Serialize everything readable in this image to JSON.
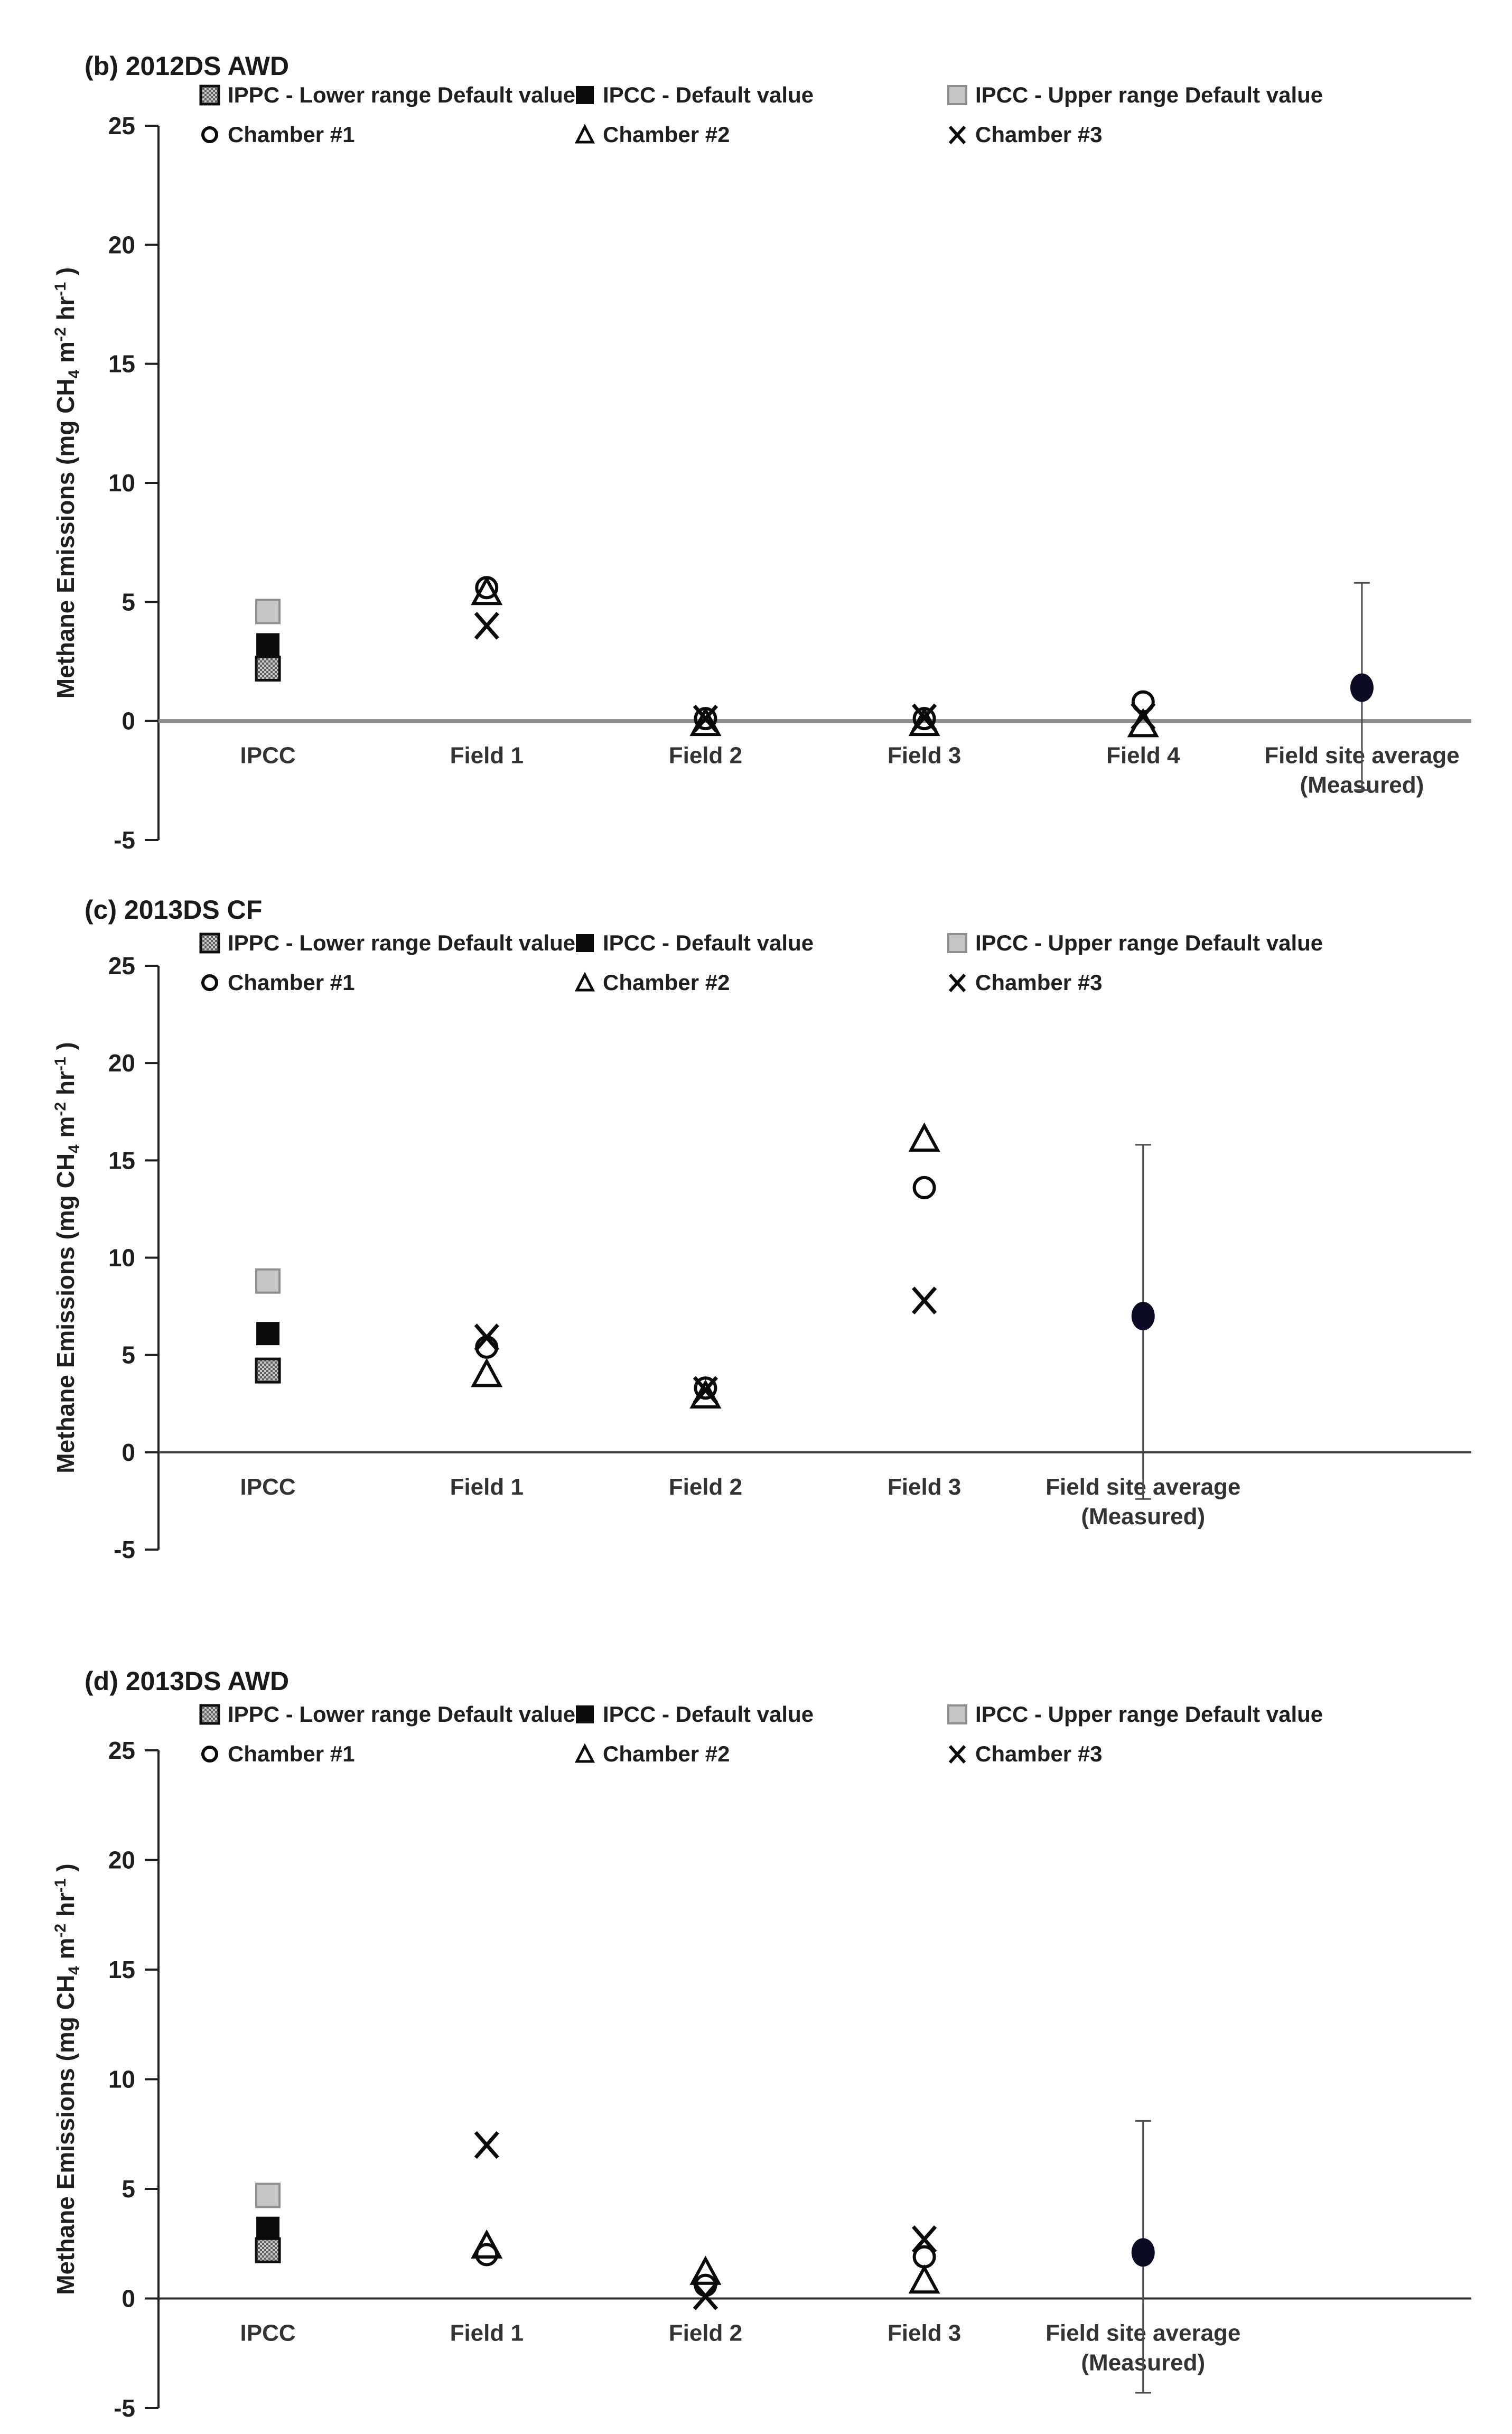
{
  "figure": {
    "background": "#ffffff",
    "text_color": "#1f1f1f"
  },
  "colors": {
    "square_upper_fill": "#c6c6c6",
    "square_upper_stroke": "#8f8f8f",
    "square_default_fill": "#0b0b0b",
    "square_hatched_dot": "#5f5f5f",
    "square_hatched_bg": "#c9c9c9",
    "open_marker_stroke": "#0a0a0a",
    "average_fill": "#0b0b26",
    "error_bar": "#4a4a52",
    "axis": "#1f1f1f",
    "zero_line_b": "#8a8a8a",
    "zero_line_cd": "#3d3d3d"
  },
  "chart_data": [
    {
      "panel": "(b)",
      "title": "(b) 2012DS AWD",
      "type": "scatter",
      "ylabel": "Methane Emissions (mg CH4 m-2 hr-1)",
      "ylabel_rich": [
        {
          "t": "Methane Emissions (mg CH",
          "s": "n"
        },
        {
          "t": "4",
          "s": "sub"
        },
        {
          "t": " m",
          "s": "n"
        },
        {
          "t": "-2",
          "s": "sup"
        },
        {
          "t": " hr",
          "s": "n"
        },
        {
          "t": "-1",
          "s": "sup"
        },
        {
          "t": ")",
          "s": "n"
        }
      ],
      "ylim": [
        -5,
        25
      ],
      "yticks": [
        25,
        20,
        15,
        10,
        5,
        0,
        -5
      ],
      "grid": false,
      "legend_position": "top-inside",
      "slots": 6,
      "categories": [
        [
          "IPCC"
        ],
        [
          "Field 1"
        ],
        [
          "Field 2"
        ],
        [
          "Field 3"
        ],
        [
          "Field 4"
        ],
        [
          "Field site average",
          "(Measured)"
        ]
      ],
      "series": [
        {
          "name": "IPPC - Lower range Default value",
          "marker": "square-hatched",
          "values": [
            2.2,
            null,
            null,
            null,
            null,
            null
          ]
        },
        {
          "name": "IPCC - Default value",
          "marker": "square-black",
          "values": [
            3.2,
            null,
            null,
            null,
            null,
            null
          ]
        },
        {
          "name": "IPCC - Upper range Default value",
          "marker": "square-gray",
          "values": [
            4.6,
            null,
            null,
            null,
            null,
            null
          ]
        },
        {
          "name": "Chamber #1",
          "marker": "circle-open",
          "values": [
            null,
            5.6,
            0.1,
            0.1,
            0.8,
            null
          ]
        },
        {
          "name": "Chamber #2",
          "marker": "triangle-open",
          "values": [
            null,
            5.4,
            -0.1,
            -0.1,
            -0.15,
            null
          ]
        },
        {
          "name": "Chamber #3",
          "marker": "x-cross",
          "values": [
            null,
            4.0,
            0.1,
            0.15,
            0.2,
            null
          ]
        }
      ],
      "average": {
        "name": "Field site average (Measured)",
        "marker": "circle-filled",
        "category_index": 5,
        "value": 1.4,
        "error_low": -2.9,
        "error_high": 5.8
      }
    },
    {
      "panel": "(c)",
      "title": "(c) 2013DS CF",
      "type": "scatter",
      "ylabel": "Methane Emissions (mg CH4 m-2 hr-1)",
      "ylabel_rich": [
        {
          "t": "Methane Emissions (mg CH",
          "s": "n"
        },
        {
          "t": "4",
          "s": "sub"
        },
        {
          "t": " m",
          "s": "n"
        },
        {
          "t": "-2",
          "s": "sup"
        },
        {
          "t": " hr",
          "s": "n"
        },
        {
          "t": "-1",
          "s": "sup"
        },
        {
          "t": ")",
          "s": "n"
        }
      ],
      "ylim": [
        -5,
        25
      ],
      "yticks": [
        25,
        20,
        15,
        10,
        5,
        0,
        -5
      ],
      "grid": false,
      "legend_position": "top-inside",
      "slots": 6,
      "categories": [
        [
          "IPCC"
        ],
        [
          "Field 1"
        ],
        [
          "Field 2"
        ],
        [
          "Field 3"
        ],
        [
          "Field site average",
          "(Measured)"
        ]
      ],
      "series": [
        {
          "name": "IPPC - Lower range Default value",
          "marker": "square-hatched",
          "values": [
            4.2,
            null,
            null,
            null,
            null
          ]
        },
        {
          "name": "IPCC - Default value",
          "marker": "square-black",
          "values": [
            6.1,
            null,
            null,
            null,
            null
          ]
        },
        {
          "name": "IPCC - Upper range Default value",
          "marker": "square-gray",
          "values": [
            8.8,
            null,
            null,
            null,
            null
          ]
        },
        {
          "name": "Chamber #1",
          "marker": "circle-open",
          "values": [
            null,
            5.4,
            3.3,
            13.6,
            null
          ]
        },
        {
          "name": "Chamber #2",
          "marker": "triangle-open",
          "values": [
            null,
            4.0,
            2.9,
            16.1,
            null
          ]
        },
        {
          "name": "Chamber #3",
          "marker": "x-cross",
          "values": [
            null,
            5.9,
            3.2,
            7.8,
            null
          ]
        }
      ],
      "average": {
        "name": "Field site average (Measured)",
        "marker": "circle-filled",
        "category_index": 4,
        "value": 7.0,
        "error_low": -2.4,
        "error_high": 15.8
      }
    },
    {
      "panel": "(d)",
      "title": "(d) 2013DS AWD",
      "type": "scatter",
      "ylabel": "Methane Emissions (mg CH4 m-2 hr-1)",
      "ylabel_rich": [
        {
          "t": "Methane Emissions (mg CH",
          "s": "n"
        },
        {
          "t": "4",
          "s": "sub"
        },
        {
          "t": " m",
          "s": "n"
        },
        {
          "t": "-2",
          "s": "sup"
        },
        {
          "t": " hr",
          "s": "n"
        },
        {
          "t": "-1",
          "s": "sup"
        },
        {
          "t": ")",
          "s": "n"
        }
      ],
      "ylim": [
        -5,
        25
      ],
      "yticks": [
        25,
        20,
        15,
        10,
        5,
        0,
        -5
      ],
      "grid": false,
      "legend_position": "top-inside",
      "slots": 6,
      "categories": [
        [
          "IPCC"
        ],
        [
          "Field 1"
        ],
        [
          "Field 2"
        ],
        [
          "Field 3"
        ],
        [
          "Field site average",
          "(Measured)"
        ]
      ],
      "series": [
        {
          "name": "IPPC - Lower range Default value",
          "marker": "square-hatched",
          "values": [
            2.2,
            null,
            null,
            null,
            null
          ]
        },
        {
          "name": "IPCC - Default value",
          "marker": "square-black",
          "values": [
            3.2,
            null,
            null,
            null,
            null
          ]
        },
        {
          "name": "IPCC - Upper range Default value",
          "marker": "square-gray",
          "values": [
            4.7,
            null,
            null,
            null,
            null
          ]
        },
        {
          "name": "Chamber #1",
          "marker": "circle-open",
          "values": [
            null,
            2.0,
            0.6,
            1.9,
            null
          ]
        },
        {
          "name": "Chamber #2",
          "marker": "triangle-open",
          "values": [
            null,
            2.4,
            1.2,
            0.8,
            null
          ]
        },
        {
          "name": "Chamber #3",
          "marker": "x-cross",
          "values": [
            null,
            7.0,
            0.1,
            2.7,
            null
          ]
        }
      ],
      "average": {
        "name": "Field site average (Measured)",
        "marker": "circle-filled",
        "category_index": 4,
        "value": 2.1,
        "error_low": -4.3,
        "error_high": 8.1
      }
    }
  ]
}
